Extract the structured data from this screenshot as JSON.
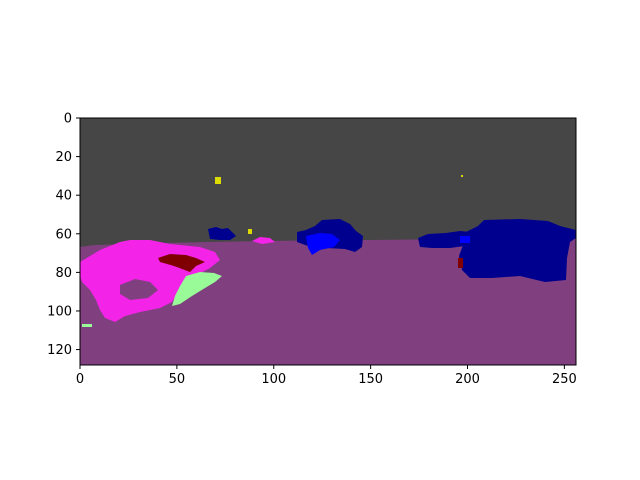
{
  "axes": {
    "x_range": [
      0,
      256
    ],
    "y_range": [
      128,
      0
    ],
    "x_ticks": [
      {
        "value": 0,
        "label": "0"
      },
      {
        "value": 50,
        "label": "50"
      },
      {
        "value": 100,
        "label": "100"
      },
      {
        "value": 150,
        "label": "150"
      },
      {
        "value": 200,
        "label": "200"
      },
      {
        "value": 250,
        "label": "250"
      }
    ],
    "y_ticks": [
      {
        "value": 0,
        "label": "0"
      },
      {
        "value": 20,
        "label": "20"
      },
      {
        "value": 40,
        "label": "40"
      },
      {
        "value": 60,
        "label": "60"
      },
      {
        "value": 80,
        "label": "80"
      },
      {
        "value": 100,
        "label": "100"
      },
      {
        "value": 120,
        "label": "120"
      }
    ]
  },
  "segmentation_colors": {
    "sky": "#464646",
    "road": "#804080",
    "vehicle_dark": "#00008e",
    "vehicle_bright": "#0000ff",
    "sign": "#dcdc00",
    "pedestrian_pink": "#f423e8",
    "vegetation": "#98fb98",
    "dark_red": "#800000"
  }
}
